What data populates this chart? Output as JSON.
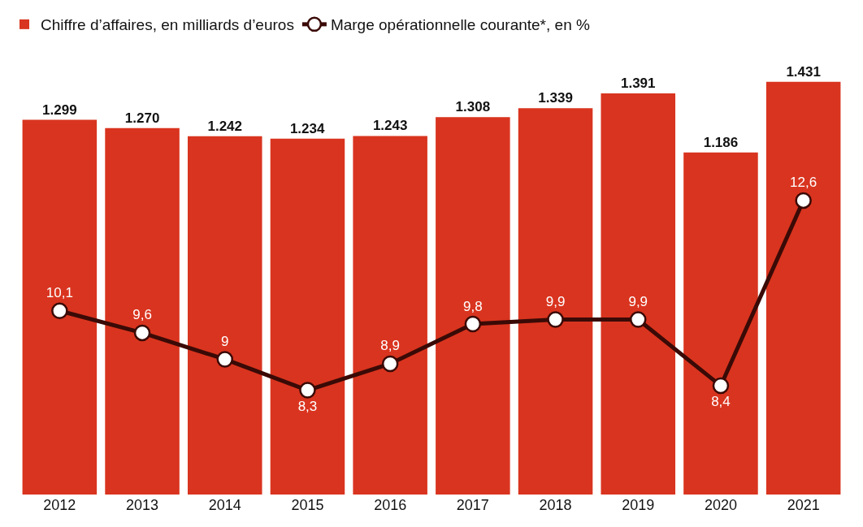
{
  "chart_data": {
    "type": "bar",
    "categories": [
      "2012",
      "2013",
      "2014",
      "2015",
      "2016",
      "2017",
      "2018",
      "2019",
      "2020",
      "2021"
    ],
    "series": [
      {
        "name": "Chiffre d’affaires, en milliards d’euros",
        "color": "#d9341f",
        "values": [
          1299,
          1270,
          1242,
          1234,
          1243,
          1308,
          1339,
          1391,
          1186,
          1431
        ],
        "value_labels": [
          "1.299",
          "1.270",
          "1.242",
          "1.234",
          "1.243",
          "1.308",
          "1.339",
          "1.391",
          "1.186",
          "1.431"
        ]
      },
      {
        "name": "Marge opérationnelle courante*, en %",
        "type": "line",
        "axis": "y2",
        "color": "#3a0a06",
        "values": [
          10.1,
          9.6,
          9,
          8.3,
          8.9,
          9.8,
          9.9,
          9.9,
          8.4,
          12.6
        ],
        "value_labels": [
          "10,1",
          "9,6",
          "9",
          "8,3",
          "8,9",
          "9,8",
          "9,9",
          "9,9",
          "8,4",
          "12,6"
        ]
      }
    ],
    "tick_labels": "x",
    "legend": "top left",
    "marker": "circle",
    "line_style": "solid"
  }
}
